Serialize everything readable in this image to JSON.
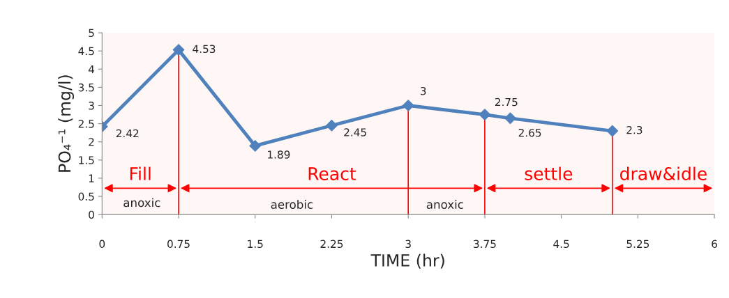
{
  "chart_data": {
    "type": "line",
    "x": [
      0,
      0.75,
      1.5,
      2.25,
      3,
      3.75,
      4,
      5
    ],
    "series": [
      {
        "color": "#4f81bd",
        "values": [
          2.42,
          4.53,
          1.89,
          2.45,
          3,
          2.75,
          2.65,
          2.3
        ]
      }
    ],
    "marker": "diamond",
    "data_labels": true,
    "grid": false,
    "legend": false,
    "xlabel": "TIME (hr)",
    "ylabel": "PO₄⁻¹ (mg/l)",
    "xlim": [
      0,
      6
    ],
    "xticks": [
      0,
      0.75,
      1.5,
      2.25,
      3,
      3.75,
      4.5,
      5.25,
      6
    ],
    "ylim": [
      0,
      5
    ],
    "yticks": [
      0,
      0.5,
      1,
      1.5,
      2,
      2.5,
      3,
      3.5,
      4,
      4.5,
      5
    ],
    "ref_lines": [
      {
        "axis": "x",
        "value": 0.75,
        "color": "#ff0000"
      },
      {
        "axis": "x",
        "value": 3,
        "color": "#ff0000"
      },
      {
        "axis": "x",
        "value": 3.75,
        "color": "#ff0000"
      },
      {
        "axis": "x",
        "value": 5,
        "color": "#ff0000"
      }
    ],
    "bands": [
      {
        "axis": "x",
        "from": 0,
        "to": 0.75,
        "label": "Fill",
        "color": "#ff0000"
      },
      {
        "axis": "x",
        "from": 0.75,
        "to": 3.75,
        "label": "React",
        "color": "#ff0000"
      },
      {
        "axis": "x",
        "from": 3.75,
        "to": 5,
        "label": "settle",
        "color": "#ff0000"
      },
      {
        "axis": "x",
        "from": 5,
        "to": 6,
        "label": "draw&idle",
        "color": "#ff0000"
      }
    ],
    "annotations": [
      "anoxic",
      "aerobic",
      "anoxic"
    ]
  }
}
